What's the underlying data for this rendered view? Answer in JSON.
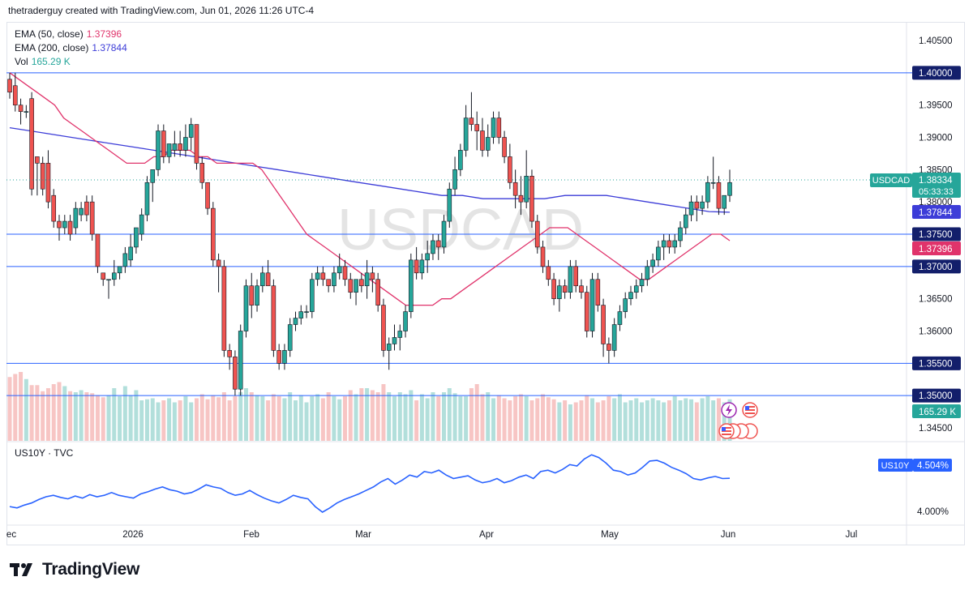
{
  "header": {
    "text": "thetraderguy created with TradingView.com, Jun 01, 2026 11:26 UTC-4"
  },
  "legend": {
    "ema50": {
      "label": "EMA (50, close)",
      "value": "1.37396",
      "color": "#e0336b"
    },
    "ema200": {
      "label": "EMA (200, close)",
      "value": "1.37844",
      "color": "#3d3dd8"
    },
    "vol": {
      "label": "Vol",
      "value": "165.29 K",
      "color": "#26a69a"
    }
  },
  "watermark": "USDCAD",
  "footer": {
    "brand": "TradingView"
  },
  "chart_data": {
    "type": "candlestick",
    "symbol": "USDCAD",
    "last_price": "1.38334",
    "countdown": "05:33:33",
    "colors": {
      "up": "#26a69a",
      "down": "#ef5350",
      "up_vol": "#b2dfdb",
      "down_vol": "#f7c5c4",
      "hline": "#2962ff"
    },
    "ylim": [
      1.342,
      1.407
    ],
    "y_ticks": [
      "1.40500",
      "1.39500",
      "1.39000",
      "1.38500",
      "1.38000",
      "1.36500",
      "1.36000",
      "1.34500"
    ],
    "x_labels": [
      "ec",
      "2026",
      "Feb",
      "Mar",
      "Apr",
      "May",
      "Jun",
      "Jul"
    ],
    "horizontal_levels": [
      "1.40000",
      "1.37500",
      "1.37000",
      "1.35500",
      "1.35000"
    ],
    "ema_labels": [
      {
        "value": "1.37844",
        "color": "#3d3dd8"
      },
      {
        "value": "1.37396",
        "color": "#e0336b"
      }
    ],
    "vol_label": "165.29 K",
    "candles": [
      [
        1.399,
        1.4,
        1.396,
        1.397
      ],
      [
        1.398,
        1.4,
        1.394,
        1.395
      ],
      [
        1.395,
        1.396,
        1.392,
        1.394
      ],
      [
        1.394,
        1.395,
        1.393,
        1.394
      ],
      [
        1.396,
        1.397,
        1.381,
        1.382
      ],
      [
        1.387,
        1.387,
        1.381,
        1.386
      ],
      [
        1.386,
        1.387,
        1.381,
        1.382
      ],
      [
        1.386,
        1.388,
        1.379,
        1.38
      ],
      [
        1.381,
        1.382,
        1.376,
        1.377
      ],
      [
        1.377,
        1.378,
        1.374,
        1.376
      ],
      [
        1.376,
        1.378,
        1.375,
        1.377
      ],
      [
        1.377,
        1.378,
        1.374,
        1.375
      ],
      [
        1.376,
        1.38,
        1.375,
        1.379
      ],
      [
        1.378,
        1.38,
        1.377,
        1.379
      ],
      [
        1.38,
        1.381,
        1.377,
        1.378
      ],
      [
        1.38,
        1.381,
        1.374,
        1.375
      ],
      [
        1.375,
        1.375,
        1.369,
        1.37
      ],
      [
        1.369,
        1.369,
        1.367,
        1.368
      ],
      [
        1.368,
        1.368,
        1.365,
        1.368
      ],
      [
        1.368,
        1.371,
        1.367,
        1.369
      ],
      [
        1.369,
        1.37,
        1.368,
        1.37
      ],
      [
        1.37,
        1.373,
        1.369,
        1.372
      ],
      [
        1.371,
        1.375,
        1.37,
        1.373
      ],
      [
        1.373,
        1.376,
        1.372,
        1.376
      ],
      [
        1.375,
        1.379,
        1.374,
        1.378
      ],
      [
        1.378,
        1.384,
        1.377,
        1.383
      ],
      [
        1.383,
        1.385,
        1.38,
        1.385
      ],
      [
        1.385,
        1.392,
        1.384,
        1.391
      ],
      [
        1.391,
        1.392,
        1.386,
        1.387
      ],
      [
        1.387,
        1.389,
        1.386,
        1.389
      ],
      [
        1.388,
        1.391,
        1.387,
        1.389
      ],
      [
        1.389,
        1.391,
        1.387,
        1.388
      ],
      [
        1.388,
        1.392,
        1.387,
        1.39
      ],
      [
        1.39,
        1.393,
        1.388,
        1.392
      ],
      [
        1.392,
        1.392,
        1.385,
        1.386
      ],
      [
        1.386,
        1.387,
        1.382,
        1.383
      ],
      [
        1.383,
        1.383,
        1.378,
        1.379
      ],
      [
        1.379,
        1.38,
        1.37,
        1.371
      ],
      [
        1.371,
        1.372,
        1.366,
        1.37
      ],
      [
        1.37,
        1.371,
        1.356,
        1.357
      ],
      [
        1.357,
        1.358,
        1.354,
        1.356
      ],
      [
        1.356,
        1.357,
        1.35,
        1.351
      ],
      [
        1.351,
        1.361,
        1.35,
        1.36
      ],
      [
        1.36,
        1.368,
        1.359,
        1.367
      ],
      [
        1.367,
        1.369,
        1.362,
        1.364
      ],
      [
        1.364,
        1.368,
        1.363,
        1.367
      ],
      [
        1.367,
        1.37,
        1.366,
        1.369
      ],
      [
        1.369,
        1.371,
        1.367,
        1.367
      ],
      [
        1.367,
        1.368,
        1.356,
        1.357
      ],
      [
        1.357,
        1.358,
        1.354,
        1.355
      ],
      [
        1.355,
        1.358,
        1.354,
        1.357
      ],
      [
        1.357,
        1.362,
        1.356,
        1.361
      ],
      [
        1.361,
        1.363,
        1.36,
        1.362
      ],
      [
        1.362,
        1.364,
        1.361,
        1.363
      ],
      [
        1.363,
        1.364,
        1.362,
        1.363
      ],
      [
        1.363,
        1.369,
        1.362,
        1.368
      ],
      [
        1.368,
        1.37,
        1.367,
        1.369
      ],
      [
        1.369,
        1.37,
        1.367,
        1.368
      ],
      [
        1.368,
        1.368,
        1.366,
        1.367
      ],
      [
        1.367,
        1.37,
        1.366,
        1.369
      ],
      [
        1.369,
        1.372,
        1.368,
        1.37
      ],
      [
        1.37,
        1.371,
        1.367,
        1.368
      ],
      [
        1.368,
        1.369,
        1.365,
        1.366
      ],
      [
        1.366,
        1.368,
        1.364,
        1.368
      ],
      [
        1.368,
        1.369,
        1.366,
        1.367
      ],
      [
        1.367,
        1.371,
        1.365,
        1.369
      ],
      [
        1.369,
        1.37,
        1.366,
        1.368
      ],
      [
        1.368,
        1.369,
        1.363,
        1.364
      ],
      [
        1.364,
        1.365,
        1.356,
        1.357
      ],
      [
        1.357,
        1.359,
        1.354,
        1.358
      ],
      [
        1.358,
        1.361,
        1.357,
        1.359
      ],
      [
        1.359,
        1.361,
        1.357,
        1.36
      ],
      [
        1.36,
        1.364,
        1.359,
        1.363
      ],
      [
        1.363,
        1.372,
        1.362,
        1.371
      ],
      [
        1.371,
        1.373,
        1.368,
        1.369
      ],
      [
        1.369,
        1.372,
        1.368,
        1.371
      ],
      [
        1.371,
        1.374,
        1.369,
        1.372
      ],
      [
        1.372,
        1.375,
        1.371,
        1.374
      ],
      [
        1.374,
        1.375,
        1.371,
        1.373
      ],
      [
        1.373,
        1.378,
        1.372,
        1.377
      ],
      [
        1.377,
        1.383,
        1.376,
        1.382
      ],
      [
        1.382,
        1.387,
        1.381,
        1.385
      ],
      [
        1.385,
        1.389,
        1.384,
        1.388
      ],
      [
        1.388,
        1.395,
        1.387,
        1.393
      ],
      [
        1.393,
        1.397,
        1.391,
        1.392
      ],
      [
        1.392,
        1.394,
        1.388,
        1.391
      ],
      [
        1.391,
        1.393,
        1.387,
        1.388
      ],
      [
        1.388,
        1.392,
        1.387,
        1.39
      ],
      [
        1.39,
        1.394,
        1.389,
        1.393
      ],
      [
        1.393,
        1.394,
        1.389,
        1.39
      ],
      [
        1.39,
        1.391,
        1.386,
        1.387
      ],
      [
        1.387,
        1.389,
        1.382,
        1.383
      ],
      [
        1.383,
        1.385,
        1.379,
        1.381
      ],
      [
        1.381,
        1.384,
        1.378,
        1.38
      ],
      [
        1.38,
        1.388,
        1.379,
        1.384
      ],
      [
        1.384,
        1.385,
        1.376,
        1.377
      ],
      [
        1.377,
        1.378,
        1.372,
        1.373
      ],
      [
        1.373,
        1.374,
        1.369,
        1.37
      ],
      [
        1.37,
        1.371,
        1.367,
        1.368
      ],
      [
        1.368,
        1.369,
        1.364,
        1.365
      ],
      [
        1.365,
        1.368,
        1.363,
        1.367
      ],
      [
        1.367,
        1.368,
        1.365,
        1.366
      ],
      [
        1.366,
        1.371,
        1.365,
        1.37
      ],
      [
        1.37,
        1.371,
        1.366,
        1.367
      ],
      [
        1.367,
        1.368,
        1.365,
        1.366
      ],
      [
        1.366,
        1.367,
        1.359,
        1.36
      ],
      [
        1.36,
        1.369,
        1.359,
        1.368
      ],
      [
        1.368,
        1.369,
        1.363,
        1.364
      ],
      [
        1.364,
        1.365,
        1.356,
        1.358
      ],
      [
        1.358,
        1.359,
        1.355,
        1.357
      ],
      [
        1.357,
        1.362,
        1.356,
        1.361
      ],
      [
        1.361,
        1.364,
        1.36,
        1.363
      ],
      [
        1.363,
        1.366,
        1.362,
        1.365
      ],
      [
        1.365,
        1.367,
        1.364,
        1.366
      ],
      [
        1.366,
        1.368,
        1.365,
        1.367
      ],
      [
        1.367,
        1.369,
        1.366,
        1.368
      ],
      [
        1.368,
        1.371,
        1.367,
        1.37
      ],
      [
        1.37,
        1.372,
        1.369,
        1.371
      ],
      [
        1.371,
        1.374,
        1.37,
        1.373
      ],
      [
        1.373,
        1.375,
        1.371,
        1.374
      ],
      [
        1.374,
        1.375,
        1.372,
        1.373
      ],
      [
        1.373,
        1.375,
        1.372,
        1.374
      ],
      [
        1.374,
        1.377,
        1.373,
        1.376
      ],
      [
        1.376,
        1.379,
        1.375,
        1.378
      ],
      [
        1.378,
        1.381,
        1.377,
        1.38
      ],
      [
        1.38,
        1.381,
        1.377,
        1.379
      ],
      [
        1.379,
        1.381,
        1.378,
        1.38
      ],
      [
        1.38,
        1.384,
        1.379,
        1.383
      ],
      [
        1.383,
        1.387,
        1.382,
        1.383
      ],
      [
        1.383,
        1.384,
        1.378,
        1.379
      ],
      [
        1.379,
        1.381,
        1.378,
        1.381
      ],
      [
        1.381,
        1.385,
        1.38,
        1.383
      ]
    ],
    "volumes": [
      63,
      66,
      68,
      61,
      55,
      55,
      49,
      52,
      56,
      58,
      54,
      49,
      48,
      50,
      48,
      47,
      45,
      43,
      45,
      52,
      44,
      54,
      45,
      50,
      40,
      41,
      42,
      38,
      40,
      42,
      38,
      40,
      44,
      38,
      42,
      46,
      41,
      45,
      43,
      48,
      40,
      44,
      48,
      52,
      48,
      45,
      44,
      40,
      46,
      44,
      42,
      48,
      40,
      45,
      38,
      44,
      46,
      42,
      48,
      44,
      41,
      44,
      50,
      46,
      52,
      52,
      50,
      48,
      56,
      48,
      44,
      48,
      46,
      50,
      40,
      46,
      42,
      48,
      44,
      48,
      52,
      47,
      44,
      44,
      52,
      56,
      46,
      48,
      42,
      45,
      42,
      40,
      44,
      46,
      44,
      40,
      42,
      46,
      43,
      41,
      38,
      40,
      36,
      38,
      40,
      45,
      42,
      38,
      40,
      44,
      42,
      46,
      38,
      40,
      42,
      38,
      40,
      42,
      40,
      38,
      40,
      44,
      40,
      42,
      41,
      38,
      42,
      44,
      40,
      42,
      38,
      41,
      43
    ],
    "ema50": [
      1.4,
      1.399,
      1.398,
      1.397,
      1.396,
      1.395,
      1.393,
      1.392,
      1.391,
      1.39,
      1.389,
      1.388,
      1.387,
      1.386,
      1.386,
      1.386,
      1.387,
      1.387,
      1.388,
      1.388,
      1.388,
      1.387,
      1.387,
      1.386,
      1.386,
      1.386,
      1.386,
      1.386,
      1.385,
      1.383,
      1.381,
      1.379,
      1.377,
      1.375,
      1.374,
      1.373,
      1.372,
      1.371,
      1.37,
      1.369,
      1.368,
      1.367,
      1.366,
      1.365,
      1.364,
      1.364,
      1.364,
      1.364,
      1.365,
      1.365,
      1.366,
      1.367,
      1.368,
      1.369,
      1.37,
      1.371,
      1.372,
      1.373,
      1.374,
      1.375,
      1.376,
      1.376,
      1.376,
      1.375,
      1.374,
      1.373,
      1.372,
      1.371,
      1.37,
      1.369,
      1.368,
      1.368,
      1.369,
      1.37,
      1.371,
      1.372,
      1.373,
      1.374,
      1.375,
      1.375,
      1.374
    ],
    "ema200": [
      1.3915,
      1.391,
      1.3905,
      1.39,
      1.3895,
      1.389,
      1.3885,
      1.388,
      1.3875,
      1.387,
      1.3865,
      1.386,
      1.3855,
      1.385,
      1.3845,
      1.384,
      1.3835,
      1.383,
      1.3825,
      1.382,
      1.3815,
      1.381,
      1.381,
      1.3805,
      1.3805,
      1.3805,
      1.3805,
      1.381,
      1.381,
      1.381,
      1.3805,
      1.38,
      1.3795,
      1.379,
      1.3785,
      1.3784
    ],
    "us10y": {
      "label": "US10Y · TVC",
      "last_label": "US10Y",
      "last_value": "4.504%",
      "tick": "4.000%",
      "values": [
        4.1,
        4.08,
        4.12,
        4.15,
        4.2,
        4.24,
        4.26,
        4.23,
        4.21,
        4.25,
        4.22,
        4.27,
        4.24,
        4.26,
        4.3,
        4.26,
        4.24,
        4.22,
        4.28,
        4.31,
        4.35,
        4.38,
        4.34,
        4.32,
        4.28,
        4.3,
        4.35,
        4.41,
        4.38,
        4.36,
        4.3,
        4.26,
        4.28,
        4.33,
        4.27,
        4.22,
        4.18,
        4.15,
        4.2,
        4.26,
        4.23,
        4.21,
        4.1,
        4.02,
        4.08,
        4.15,
        4.2,
        4.24,
        4.28,
        4.33,
        4.38,
        4.45,
        4.5,
        4.42,
        4.48,
        4.55,
        4.52,
        4.6,
        4.58,
        4.62,
        4.55,
        4.5,
        4.52,
        4.54,
        4.48,
        4.44,
        4.46,
        4.5,
        4.44,
        4.47,
        4.52,
        4.55,
        4.5,
        4.6,
        4.62,
        4.58,
        4.63,
        4.7,
        4.68,
        4.78,
        4.84,
        4.8,
        4.72,
        4.62,
        4.6,
        4.55,
        4.58,
        4.66,
        4.75,
        4.76,
        4.72,
        4.66,
        4.62,
        4.57,
        4.5,
        4.48,
        4.51,
        4.53,
        4.5,
        4.504
      ]
    }
  }
}
